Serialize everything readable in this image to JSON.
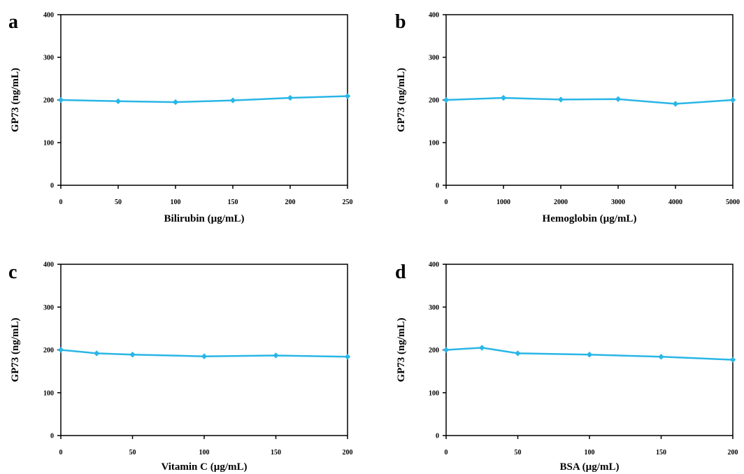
{
  "figure": {
    "background": "#ffffff",
    "line_color": "#29b6e6",
    "marker_color": "#29b6e6",
    "axis_color": "#000000"
  },
  "chart_data": [
    {
      "type": "line",
      "panel_label": "a",
      "xlabel": "Bilirubin (µg/mL)",
      "ylabel": "GP73 (ng/mL)",
      "xlim": [
        0,
        250
      ],
      "ylim": [
        0,
        400
      ],
      "x_ticks": [
        0,
        50,
        100,
        150,
        200,
        250
      ],
      "y_ticks": [
        0,
        100,
        200,
        300,
        400
      ],
      "grid": false,
      "series": [
        {
          "x": [
            0,
            50,
            100,
            150,
            200,
            250
          ],
          "y": [
            200,
            197,
            195,
            199,
            205,
            209
          ]
        }
      ]
    },
    {
      "type": "line",
      "panel_label": "b",
      "xlabel": "Hemoglobin (µg/mL)",
      "ylabel": "GP73 (ng/mL)",
      "xlim": [
        0,
        5000
      ],
      "ylim": [
        0,
        400
      ],
      "x_ticks": [
        0,
        1000,
        2000,
        3000,
        4000,
        5000
      ],
      "y_ticks": [
        0,
        100,
        200,
        300,
        400
      ],
      "grid": false,
      "series": [
        {
          "x": [
            0,
            1000,
            2000,
            3000,
            4000,
            5000
          ],
          "y": [
            200,
            205,
            201,
            202,
            191,
            200
          ]
        }
      ]
    },
    {
      "type": "line",
      "panel_label": "c",
      "xlabel": "Vitamin C (µg/mL)",
      "ylabel": "GP73 (ng/mL)",
      "xlim": [
        0,
        200
      ],
      "ylim": [
        0,
        400
      ],
      "x_ticks": [
        0,
        50,
        100,
        150,
        200
      ],
      "y_ticks": [
        0,
        100,
        200,
        300,
        400
      ],
      "grid": false,
      "series": [
        {
          "x": [
            0,
            25,
            50,
            100,
            150,
            200
          ],
          "y": [
            200,
            192,
            189,
            185,
            187,
            184
          ]
        }
      ]
    },
    {
      "type": "line",
      "panel_label": "d",
      "xlabel": "BSA (µg/mL)",
      "ylabel": "GP73 (ng/mL)",
      "xlim": [
        0,
        200
      ],
      "ylim": [
        0,
        400
      ],
      "x_ticks": [
        0,
        50,
        100,
        150,
        200
      ],
      "y_ticks": [
        0,
        100,
        200,
        300,
        400
      ],
      "grid": false,
      "series": [
        {
          "x": [
            0,
            25,
            50,
            100,
            150,
            200
          ],
          "y": [
            200,
            205,
            192,
            189,
            184,
            177
          ]
        }
      ]
    }
  ]
}
